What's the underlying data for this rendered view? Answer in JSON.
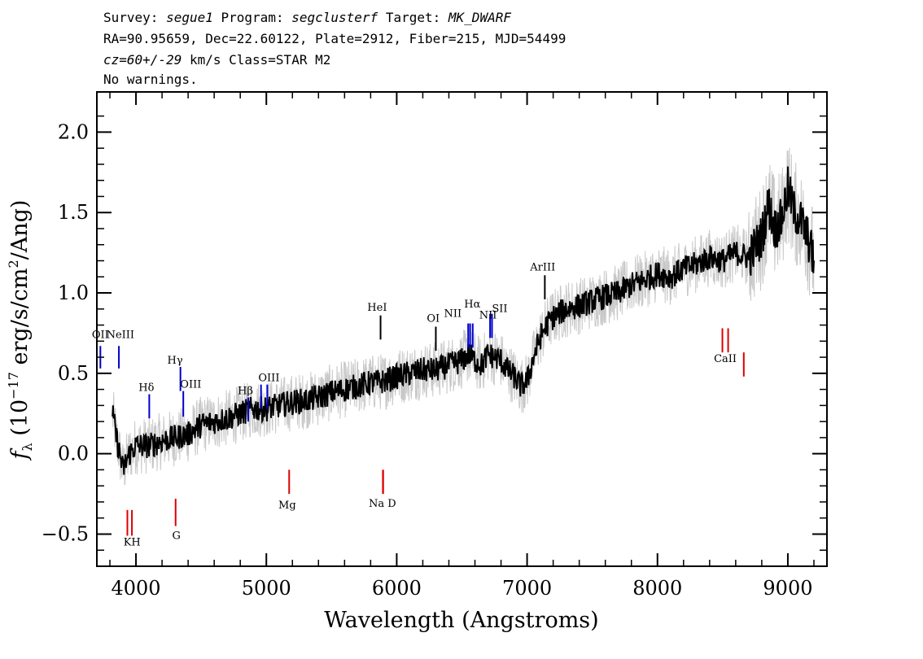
{
  "header": {
    "line1": {
      "survey_label": "Survey:",
      "survey": "segue1",
      "program_label": "Program:",
      "program": "segclusterf",
      "target_label": "Target:",
      "target": "MK_DWARF"
    },
    "line2": "RA=90.95659, Dec=22.60122, Plate=2912, Fiber=215, MJD=54499",
    "line3": {
      "cz": "cz=60+/-29",
      "rest": " km/s Class=STAR M2"
    },
    "line4": "No warnings."
  },
  "chart_data": {
    "type": "line",
    "title": "",
    "xlabel": "Wavelength (Angstroms)",
    "ylabel": "f_λ (10^-17 erg/s/cm²/Ang)",
    "xlim": [
      3700,
      9300
    ],
    "ylim": [
      -0.7,
      2.25
    ],
    "xticks": [
      4000,
      5000,
      6000,
      7000,
      8000,
      9000
    ],
    "yticks": [
      -0.5,
      0.0,
      0.5,
      1.0,
      1.5,
      2.0
    ],
    "ytick_labels": [
      "−0.5",
      "0.0",
      "0.5",
      "1.0",
      "1.5",
      "2.0"
    ],
    "grid": false,
    "colors": {
      "flux": "#000000",
      "error": "#c8c8c8",
      "emission": "#0000cc",
      "absorption": "#dd0000",
      "sky": "#000000"
    },
    "series": [
      {
        "role": "flux",
        "x": [
          3820,
          3850,
          3900,
          3950,
          4000,
          4100,
          4200,
          4300,
          4400,
          4500,
          4600,
          4700,
          4800,
          4900,
          5000,
          5100,
          5200,
          5300,
          5400,
          5500,
          5600,
          5700,
          5800,
          5900,
          6000,
          6100,
          6200,
          6300,
          6400,
          6500,
          6550,
          6600,
          6650,
          6700,
          6750,
          6800,
          6850,
          6900,
          6950,
          7000,
          7050,
          7100,
          7150,
          7200,
          7300,
          7400,
          7500,
          7600,
          7700,
          7800,
          7900,
          8000,
          8100,
          8200,
          8300,
          8400,
          8500,
          8600,
          8700,
          8800,
          8850,
          8900,
          8950,
          9000,
          9050,
          9100,
          9150,
          9200
        ],
        "y": [
          0.25,
          0.1,
          -0.1,
          0.0,
          0.05,
          0.05,
          0.08,
          0.1,
          0.12,
          0.18,
          0.2,
          0.22,
          0.25,
          0.28,
          0.28,
          0.3,
          0.32,
          0.33,
          0.35,
          0.38,
          0.4,
          0.42,
          0.44,
          0.45,
          0.48,
          0.5,
          0.52,
          0.52,
          0.55,
          0.58,
          0.62,
          0.58,
          0.55,
          0.62,
          0.6,
          0.58,
          0.52,
          0.48,
          0.42,
          0.45,
          0.6,
          0.72,
          0.8,
          0.85,
          0.9,
          0.92,
          0.95,
          0.98,
          1.0,
          1.05,
          1.08,
          1.12,
          1.1,
          1.15,
          1.18,
          1.22,
          1.2,
          1.25,
          1.22,
          1.35,
          1.55,
          1.4,
          1.45,
          1.65,
          1.5,
          1.45,
          1.35,
          1.2
        ]
      }
    ],
    "line_labels": [
      {
        "name": "OII",
        "x": 3727,
        "y1": 0.53,
        "y2": 0.67,
        "kind": "emission"
      },
      {
        "name": "NeIII",
        "x": 3869,
        "y1": 0.53,
        "y2": 0.67,
        "kind": "emission"
      },
      {
        "name": "Hδ",
        "x": 4102,
        "y1": 0.22,
        "y2": 0.37,
        "kind": "emission"
      },
      {
        "name": "Hγ",
        "x": 4341,
        "y1": 0.39,
        "y2": 0.54,
        "kind": "emission"
      },
      {
        "name": "OIII",
        "x": 4363,
        "y1": 0.23,
        "y2": 0.39,
        "kind": "emission"
      },
      {
        "name": "Hβ",
        "x": 4861,
        "y1": 0.2,
        "y2": 0.35,
        "kind": "emission"
      },
      {
        "name": "OIII",
        "x": 4959,
        "y1": 0.28,
        "y2": 0.43,
        "kind": "emission"
      },
      {
        "name": "OIII",
        "x": 5007,
        "y1": 0.28,
        "y2": 0.43,
        "kind": "emission"
      },
      {
        "name": "HeI",
        "x": 5876,
        "y1": 0.71,
        "y2": 0.86,
        "kind": "sky"
      },
      {
        "name": "OI",
        "x": 6300,
        "y1": 0.64,
        "y2": 0.79,
        "kind": "sky"
      },
      {
        "name": "NII",
        "x": 6548,
        "y1": 0.66,
        "y2": 0.81,
        "kind": "emission"
      },
      {
        "name": "Hα",
        "x": 6563,
        "y1": 0.66,
        "y2": 0.81,
        "kind": "emission"
      },
      {
        "name": "NII",
        "x": 6583,
        "y1": 0.66,
        "y2": 0.81,
        "kind": "emission"
      },
      {
        "name": "SII",
        "x": 6716,
        "y1": 0.72,
        "y2": 0.87,
        "kind": "emission"
      },
      {
        "name": "SII",
        "x": 6731,
        "y1": 0.72,
        "y2": 0.87,
        "kind": "emission"
      },
      {
        "name": "ArIII",
        "x": 7136,
        "y1": 0.96,
        "y2": 1.11,
        "kind": "sky"
      },
      {
        "name": "K",
        "x": 3934,
        "y1": -0.51,
        "y2": -0.35,
        "kind": "absorption"
      },
      {
        "name": "H",
        "x": 3969,
        "y1": -0.51,
        "y2": -0.35,
        "kind": "absorption"
      },
      {
        "name": "G",
        "x": 4304,
        "y1": -0.45,
        "y2": -0.28,
        "kind": "absorption"
      },
      {
        "name": "Mg",
        "x": 5175,
        "y1": -0.25,
        "y2": -0.1,
        "kind": "absorption"
      },
      {
        "name": "Na",
        "x": 5894,
        "y1": -0.25,
        "y2": -0.1,
        "kind": "absorption"
      },
      {
        "name": "D",
        "x": 5896,
        "y1": -0.25,
        "y2": -0.1,
        "kind": "absorption"
      },
      {
        "name": "CaII",
        "x": 8498,
        "y1": 0.63,
        "y2": 0.78,
        "kind": "absorption"
      },
      {
        "name": "CaII",
        "x": 8542,
        "y1": 0.63,
        "y2": 0.78,
        "kind": "absorption"
      },
      {
        "name": "CaII",
        "x": 8662,
        "y1": 0.48,
        "y2": 0.63,
        "kind": "absorption"
      }
    ],
    "text_labels": [
      {
        "text": "OII",
        "x": 3727,
        "y": 0.72
      },
      {
        "text": "NeIII",
        "x": 3880,
        "y": 0.72
      },
      {
        "text": "Hδ",
        "x": 4080,
        "y": 0.39
      },
      {
        "text": "Hγ",
        "x": 4300,
        "y": 0.56
      },
      {
        "text": "OIII",
        "x": 4420,
        "y": 0.41
      },
      {
        "text": "Hβ",
        "x": 4840,
        "y": 0.37
      },
      {
        "text": "OIII",
        "x": 5020,
        "y": 0.45
      },
      {
        "text": "HeI",
        "x": 5850,
        "y": 0.89
      },
      {
        "text": "OI",
        "x": 6280,
        "y": 0.82
      },
      {
        "text": "NII",
        "x": 6430,
        "y": 0.85
      },
      {
        "text": "Hα",
        "x": 6580,
        "y": 0.91
      },
      {
        "text": "NII",
        "x": 6700,
        "y": 0.84
      },
      {
        "text": "SII",
        "x": 6790,
        "y": 0.88
      },
      {
        "text": "ArIII",
        "x": 7120,
        "y": 1.14
      },
      {
        "text": "KH",
        "x": 3970,
        "y": -0.57
      },
      {
        "text": "G",
        "x": 4310,
        "y": -0.53
      },
      {
        "text": "Mg",
        "x": 5160,
        "y": -0.34
      },
      {
        "text": "Na  D",
        "x": 5890,
        "y": -0.33
      },
      {
        "text": "CaII",
        "x": 8520,
        "y": 0.57
      }
    ]
  }
}
